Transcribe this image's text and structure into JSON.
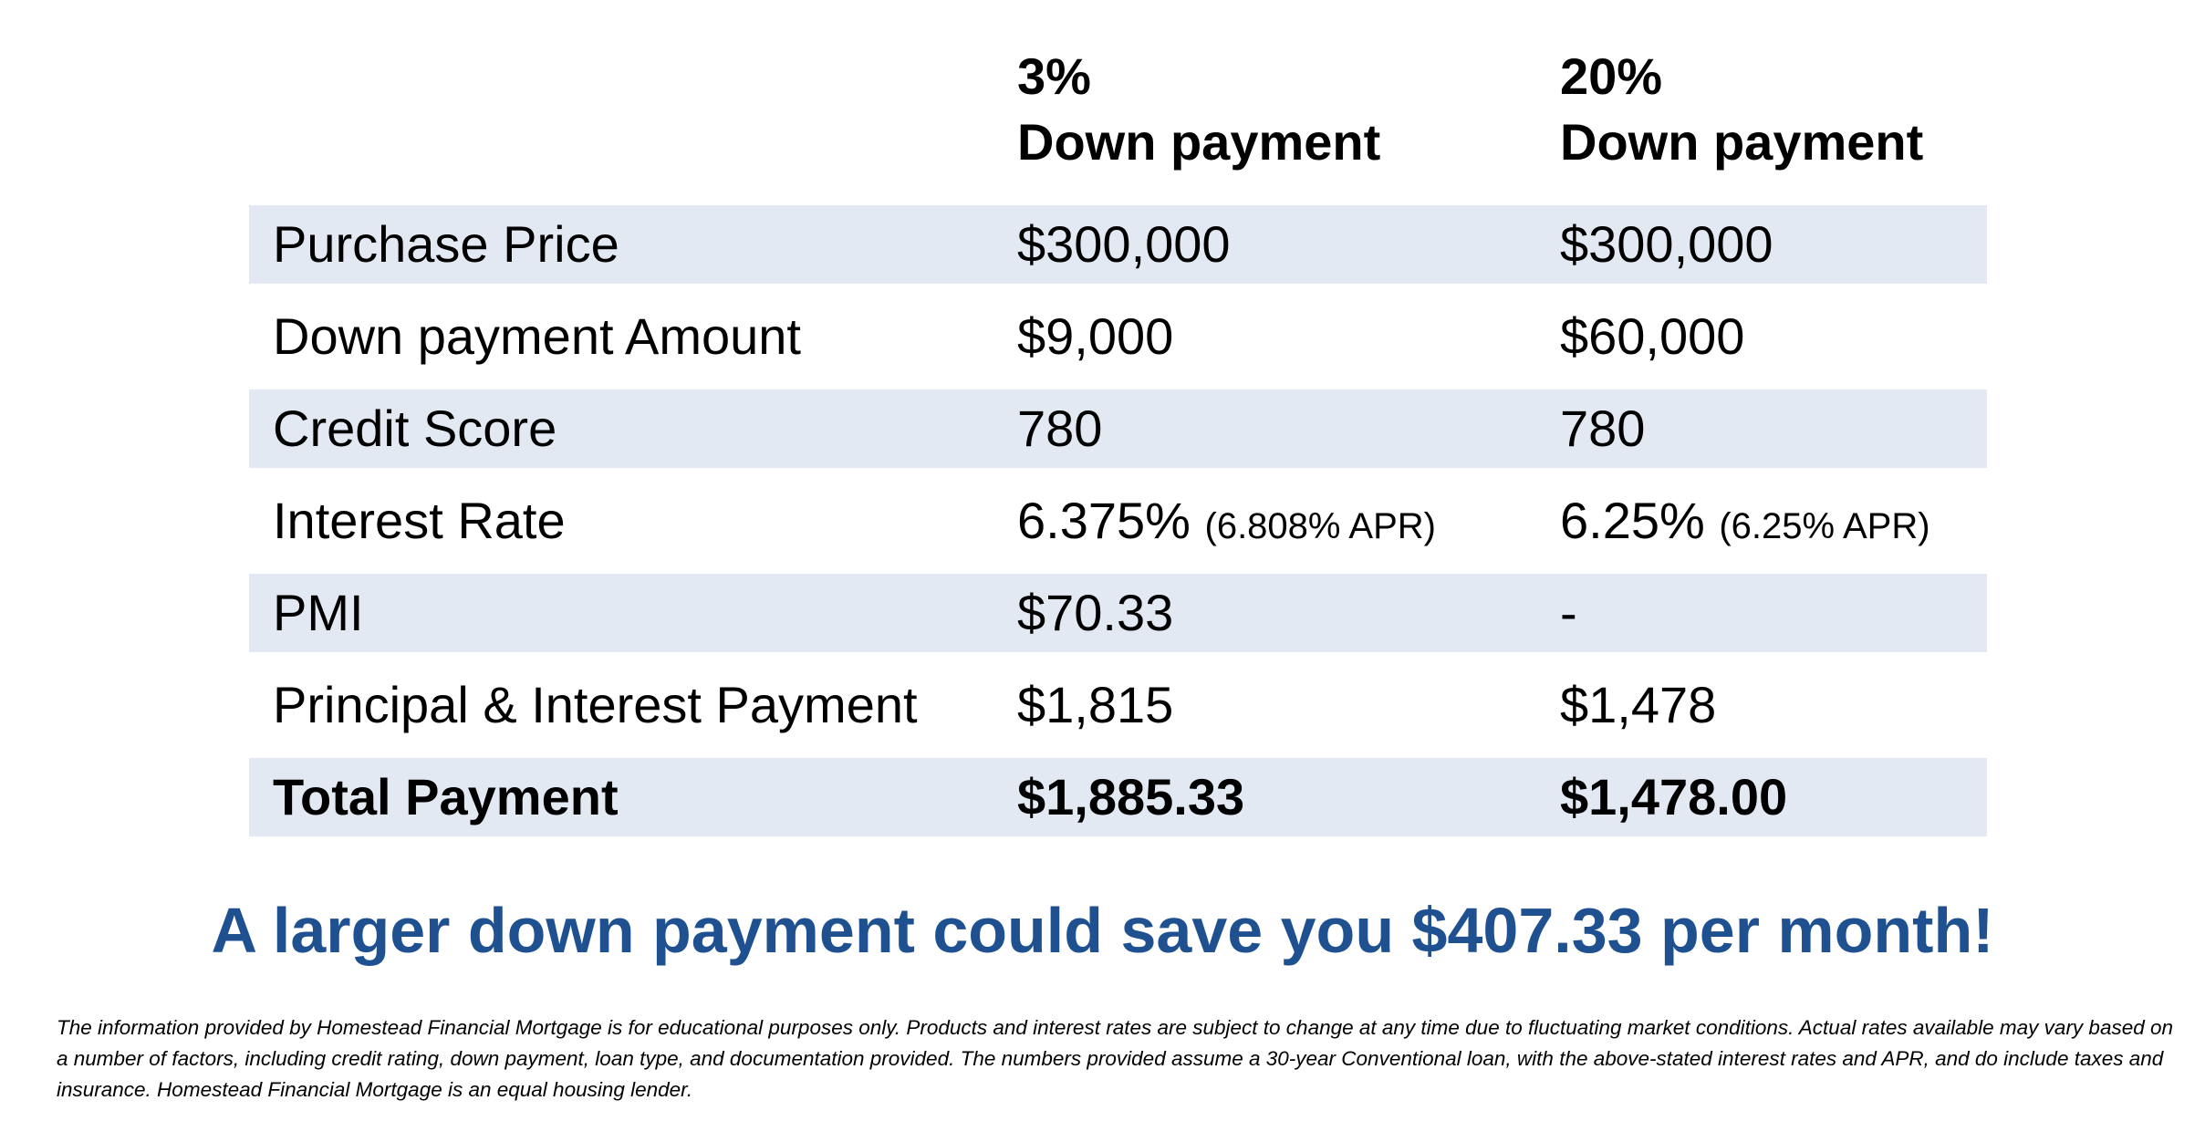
{
  "columns": {
    "a": {
      "line1": "3%",
      "line2": "Down payment"
    },
    "b": {
      "line1": "20%",
      "line2": "Down payment"
    }
  },
  "rows": [
    {
      "label": "Purchase Price",
      "a": "$300,000",
      "b": "$300,000"
    },
    {
      "label": "Down payment Amount",
      "a": "$9,000",
      "b": "$60,000"
    },
    {
      "label": "Credit Score",
      "a": "780",
      "b": "780"
    },
    {
      "label": "Interest Rate",
      "a": "6.375%",
      "a_apr": "(6.808% APR)",
      "b": "6.25%",
      "b_apr": "(6.25% APR)"
    },
    {
      "label": "PMI",
      "a": "$70.33",
      "b": "-"
    },
    {
      "label": "Principal & Interest Payment",
      "a": "$1,815",
      "b": "$1,478"
    },
    {
      "label": "Total Payment",
      "a": "$1,885.33",
      "b": "$1,478.00"
    }
  ],
  "headline": "A larger down payment could save you $407.33 per month!",
  "disclaimer": "The information provided by Homestead Financial Mortgage is for educational purposes only. Products and interest rates are subject to change at any time due to fluctuating market conditions. Actual rates available may vary based on a number of factors, including credit rating, down payment, loan type, and documentation provided. The numbers provided assume a 30-year Conventional loan, with the above-stated interest rates and APR, and do include taxes and insurance. Homestead Financial Mortgage is an equal housing lender.",
  "colors": {
    "row_shade": "#e3e9f3",
    "headline": "#1f5190"
  }
}
